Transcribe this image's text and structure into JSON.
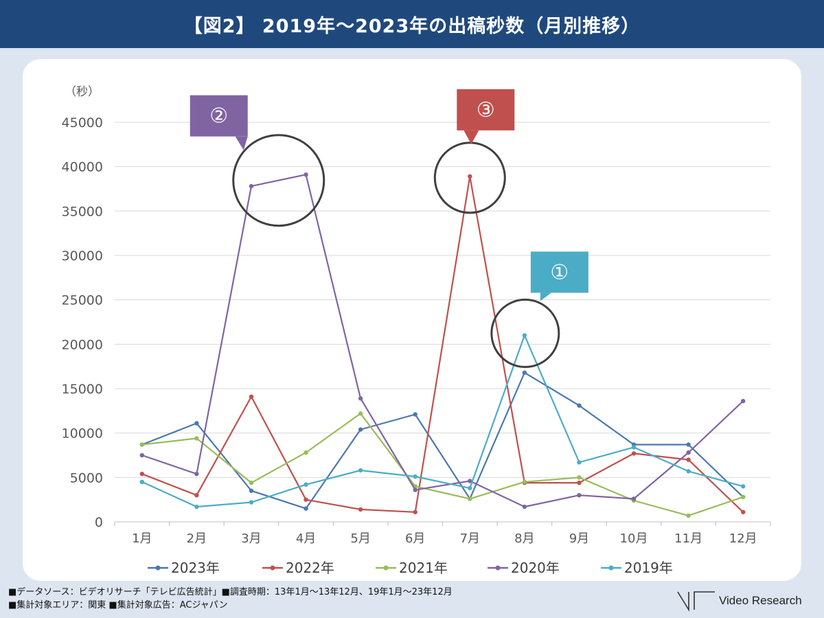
{
  "header": {
    "title": "【図2】 2019年～2023年の出稿秒数（月別推移）"
  },
  "chart_data": {
    "type": "line",
    "ylabel": "（秒）",
    "ylim": [
      0,
      45000
    ],
    "yticks": [
      0,
      5000,
      10000,
      15000,
      20000,
      25000,
      30000,
      35000,
      40000,
      45000
    ],
    "categories": [
      "1月",
      "2月",
      "3月",
      "4月",
      "5月",
      "6月",
      "7月",
      "8月",
      "9月",
      "10月",
      "11月",
      "12月"
    ],
    "grid": true,
    "legend_position": "bottom",
    "series": [
      {
        "name": "2023年",
        "color": "#4a78b0",
        "values": [
          8700,
          11100,
          3500,
          1500,
          10400,
          12100,
          2600,
          16800,
          13100,
          8700,
          8700,
          2800
        ]
      },
      {
        "name": "2022年",
        "color": "#c0504d",
        "values": [
          5400,
          3000,
          14100,
          2500,
          1400,
          1100,
          38900,
          4400,
          4400,
          7700,
          7000,
          1100
        ]
      },
      {
        "name": "2021年",
        "color": "#9bbb59",
        "values": [
          8700,
          9400,
          4400,
          7800,
          12200,
          4000,
          2600,
          4500,
          5000,
          2400,
          700,
          2800
        ]
      },
      {
        "name": "2020年",
        "color": "#8064a2",
        "values": [
          7500,
          5400,
          37800,
          39100,
          13900,
          3600,
          4600,
          1700,
          3000,
          2600,
          7800,
          13600
        ]
      },
      {
        "name": "2019年",
        "color": "#4bacc6",
        "values": [
          4500,
          1700,
          2200,
          4200,
          5800,
          5100,
          3800,
          21000,
          6700,
          8400,
          5700,
          4000
        ]
      }
    ],
    "callouts": [
      {
        "label": "①",
        "color": "#4bacc6",
        "series": "2019年",
        "category": "8月"
      },
      {
        "label": "②",
        "color": "#8064a2",
        "series": "2020年",
        "category": "3月"
      },
      {
        "label": "③",
        "color": "#c0504d",
        "series": "2022年",
        "category": "7月"
      }
    ]
  },
  "footer": {
    "line1": "■データソース：ビデオリサーチ「テレビ広告統計」■調査時期：13年1月～13年12月、19年1月～23年12月",
    "line2": "■集計対象エリア：関東 ■集計対象広告：ACジャパン"
  },
  "brand": {
    "name": "Video Research"
  }
}
